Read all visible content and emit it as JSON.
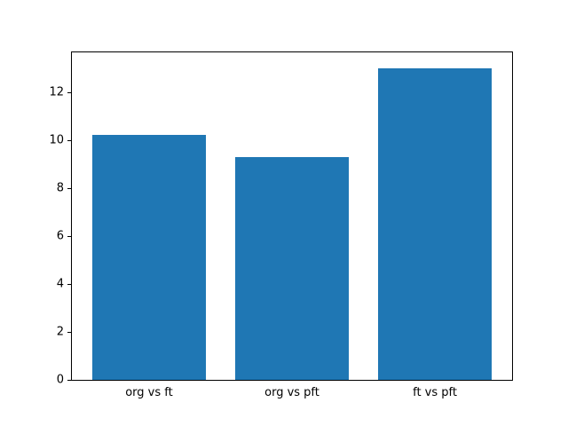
{
  "chart_data": {
    "type": "bar",
    "categories": [
      "org vs ft",
      "org vs pft",
      "ft vs pft"
    ],
    "values": [
      10.2,
      9.3,
      13.0
    ],
    "title": "",
    "xlabel": "",
    "ylabel": "",
    "ylim": [
      0,
      13.65
    ],
    "xlim": [
      -0.54,
      2.54
    ],
    "yticks": [
      0,
      2,
      4,
      6,
      8,
      10,
      12
    ],
    "bar_width": 0.8,
    "bar_color": "#1f77b4",
    "grid": "off",
    "legend": "none"
  }
}
